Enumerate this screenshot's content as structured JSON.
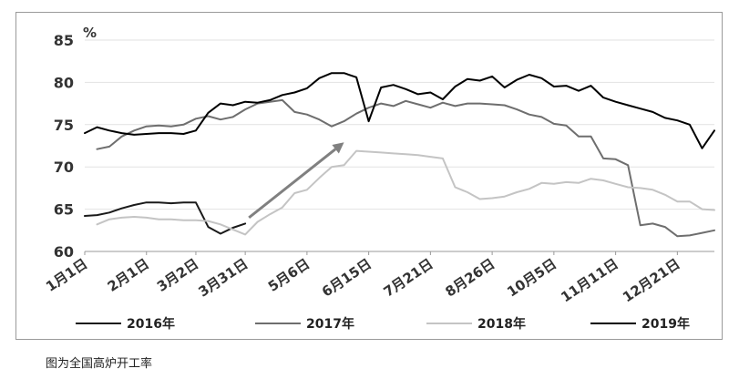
{
  "chart_data": {
    "type": "line",
    "ylabel_unit": "%",
    "ylim": [
      60,
      85
    ],
    "yticks": [
      60,
      65,
      70,
      75,
      80,
      85
    ],
    "x_count": 52,
    "xtick_labels": [
      {
        "label": "1月1日",
        "index": 0
      },
      {
        "label": "2月1日",
        "index": 5
      },
      {
        "label": "3月2日",
        "index": 9
      },
      {
        "label": "3月31日",
        "index": 13
      },
      {
        "label": "5月6日",
        "index": 18
      },
      {
        "label": "6月15日",
        "index": 23
      },
      {
        "label": "7月21日",
        "index": 28
      },
      {
        "label": "8月26日",
        "index": 33
      },
      {
        "label": "10月5日",
        "index": 38
      },
      {
        "label": "11月11日",
        "index": 43
      },
      {
        "label": "12月21日",
        "index": 48
      }
    ],
    "series": [
      {
        "name": "2016年",
        "color": "#1a1a1a",
        "x": [
          0,
          1,
          2,
          3,
          4,
          5,
          6,
          7,
          8,
          9,
          10,
          11,
          12,
          13
        ],
        "values": [
          64.2,
          64.3,
          64.6,
          65.1,
          65.5,
          65.8,
          65.8,
          65.7,
          65.8,
          65.8,
          62.9,
          62.1,
          62.8,
          63.3
        ]
      },
      {
        "name": "2017年",
        "color": "#6e6e6e",
        "x": [
          1,
          2,
          3,
          4,
          5,
          6,
          7,
          8,
          9,
          10,
          11,
          12,
          13,
          14,
          15,
          16,
          17,
          18,
          19,
          20,
          21,
          22,
          23,
          24,
          25,
          26,
          27,
          28,
          29,
          30,
          31,
          32,
          33,
          34,
          35,
          36,
          37,
          38,
          39,
          40,
          41,
          42,
          43,
          44,
          45,
          46,
          47,
          48,
          49,
          50,
          51
        ],
        "values": [
          72.1,
          72.4,
          73.6,
          74.3,
          74.8,
          74.9,
          74.8,
          75.0,
          75.7,
          76.0,
          75.6,
          75.9,
          76.8,
          77.5,
          77.7,
          77.9,
          76.5,
          76.2,
          75.6,
          74.8,
          75.4,
          76.3,
          77.0,
          77.5,
          77.2,
          77.8,
          77.4,
          77.0,
          77.6,
          77.2,
          77.5,
          77.5,
          77.4,
          77.3,
          76.8,
          76.2,
          75.9,
          75.1,
          74.9,
          73.6,
          73.6,
          71.0,
          70.9,
          70.2,
          63.1,
          63.3,
          62.9,
          61.8,
          61.9,
          62.2,
          62.5
        ]
      },
      {
        "name": "2018年",
        "color": "#c4c4c4",
        "x": [
          1,
          2,
          3,
          4,
          5,
          6,
          7,
          8,
          9,
          10,
          11,
          12,
          13,
          14,
          15,
          16,
          17,
          18,
          19,
          20,
          21,
          22,
          23,
          24,
          25,
          26,
          27,
          28,
          29,
          30,
          31,
          32,
          33,
          34,
          35,
          36,
          37,
          38,
          39,
          40,
          41,
          42,
          43,
          44,
          45,
          46,
          47,
          48,
          49,
          50,
          51
        ],
        "values": [
          63.2,
          63.8,
          64.0,
          64.1,
          64.0,
          63.8,
          63.8,
          63.7,
          63.7,
          63.6,
          63.2,
          62.6,
          62.0,
          63.5,
          64.4,
          65.2,
          66.9,
          67.3,
          68.7,
          70.0,
          70.2,
          71.9,
          71.8,
          71.7,
          71.6,
          71.5,
          71.4,
          71.2,
          71.0,
          67.6,
          67.0,
          66.2,
          66.3,
          66.5,
          67.0,
          67.4,
          68.1,
          68.0,
          68.2,
          68.1,
          68.6,
          68.4,
          68.0,
          67.6,
          67.5,
          67.3,
          66.7,
          65.9,
          65.9,
          65.0,
          64.9
        ]
      },
      {
        "name": "2019年",
        "color": "#000000",
        "x": [
          0,
          1,
          2,
          3,
          4,
          5,
          6,
          7,
          8,
          9,
          10,
          11,
          12,
          13,
          14,
          15,
          16,
          17,
          18,
          19,
          20,
          21,
          22,
          23,
          24,
          25,
          26,
          27,
          28,
          29,
          30,
          31,
          32,
          33,
          34,
          35,
          36,
          37,
          38,
          39,
          40,
          41,
          42,
          43,
          44,
          45,
          46,
          47,
          48,
          49,
          50,
          51
        ],
        "values": [
          74.0,
          74.7,
          74.3,
          74.0,
          73.8,
          73.9,
          74.0,
          74.0,
          73.9,
          74.3,
          76.4,
          77.5,
          77.3,
          77.7,
          77.6,
          77.9,
          78.5,
          78.8,
          79.3,
          80.5,
          81.1,
          81.1,
          80.6,
          75.4,
          79.4,
          79.7,
          79.2,
          78.6,
          78.8,
          78.0,
          79.5,
          80.4,
          80.2,
          80.7,
          79.4,
          80.3,
          80.9,
          80.5,
          79.5,
          79.6,
          79.0,
          79.6,
          78.2,
          77.7,
          77.3,
          76.9,
          76.5,
          75.8,
          75.5,
          75.0,
          72.2,
          74.3
        ]
      }
    ],
    "arrow": {
      "from": {
        "x": 13.3,
        "y": 64.0
      },
      "to": {
        "x": 21.0,
        "y": 72.9
      },
      "color": "#808080"
    }
  },
  "caption": "图为全国高炉开工率"
}
